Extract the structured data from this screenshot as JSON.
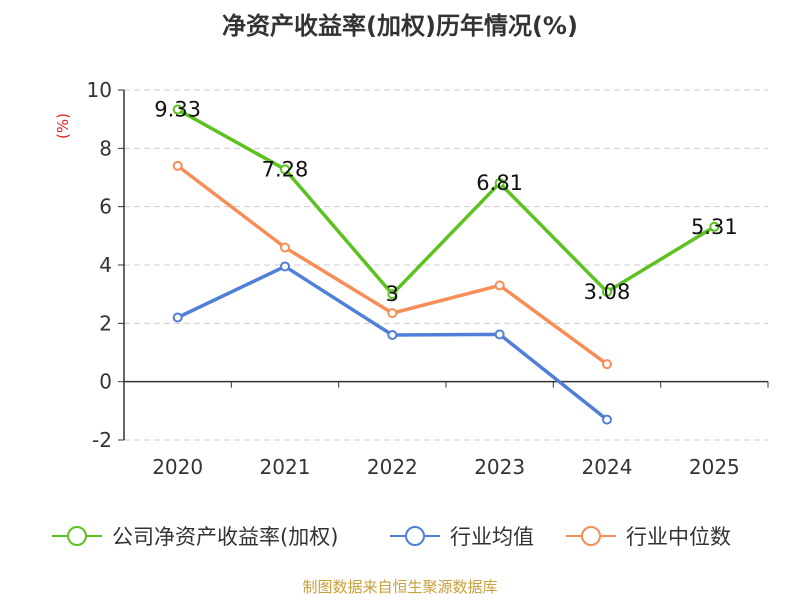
{
  "chart_data": {
    "type": "line",
    "title": "净资产收益率(加权)历年情况(%)",
    "ylabel": "(%)",
    "xlabel": "",
    "categories": [
      "2020",
      "2021",
      "2022",
      "2023",
      "2024",
      "2025"
    ],
    "ylim": [
      -2,
      10
    ],
    "yticks": [
      -2,
      0,
      2,
      4,
      6,
      8,
      10
    ],
    "grid": true,
    "legend_position": "bottom",
    "series": [
      {
        "name": "公司净资产收益率(加权)",
        "color": "#5cc21f",
        "values": [
          9.33,
          7.28,
          3,
          6.81,
          3.08,
          5.31
        ],
        "labels": [
          "9.33",
          "7.28",
          "3",
          "6.81",
          "3.08",
          "5.31"
        ]
      },
      {
        "name": "行业均值",
        "color": "#4f7fd9",
        "values": [
          2.2,
          3.95,
          1.6,
          1.62,
          -1.3,
          null
        ]
      },
      {
        "name": "行业中位数",
        "color": "#f78e58",
        "values": [
          7.4,
          4.6,
          2.35,
          3.3,
          0.6,
          null
        ]
      }
    ],
    "source_note": "制图数据来自恒生聚源数据库",
    "colors": {
      "axis": "#333333",
      "grid": "#cccccc",
      "ylabel": "#e02020",
      "source": "#c8a03c"
    }
  }
}
